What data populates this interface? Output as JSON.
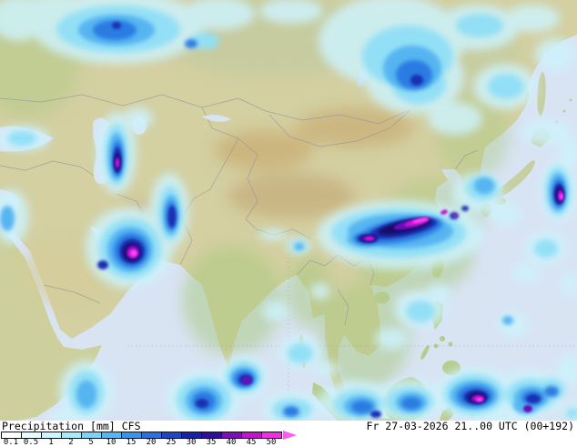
{
  "legend": {
    "title_precip": "Precipitation",
    "title_unit": "[mm]",
    "title_model": "CFS",
    "datetime": "Fr 27-03-2026 21..00 UTC (00+192)",
    "stops": [
      {
        "label": "0.1",
        "color": "#ffffff"
      },
      {
        "label": "0.5",
        "color": "#e8fcff"
      },
      {
        "label": "1",
        "color": "#cdf5fd"
      },
      {
        "label": "2",
        "color": "#a8e9fa"
      },
      {
        "label": "5",
        "color": "#7dd3f6"
      },
      {
        "label": "10",
        "color": "#55b7f0"
      },
      {
        "label": "15",
        "color": "#3993e8"
      },
      {
        "label": "20",
        "color": "#2a6fdc"
      },
      {
        "label": "25",
        "color": "#2046c8"
      },
      {
        "label": "30",
        "color": "#1822a8"
      },
      {
        "label": "35",
        "color": "#2f0e9e"
      },
      {
        "label": "40",
        "color": "#7a10b8"
      },
      {
        "label": "45",
        "color": "#c013cc"
      },
      {
        "label": "50",
        "color": "#ee2ee0"
      }
    ],
    "arrow_color": "#fb5cf0"
  },
  "map": {
    "colors": {
      "ocean": "#d9e4f3",
      "land": "#d4d0a2",
      "vegetation": "#a8c77e",
      "desert": "#c9ad74",
      "precip_light": "#cdf2fb",
      "precip_moderate": "#2c7ce2",
      "precip_heavy": "#1b2fb2",
      "precip_extreme": "#c915d2"
    }
  }
}
